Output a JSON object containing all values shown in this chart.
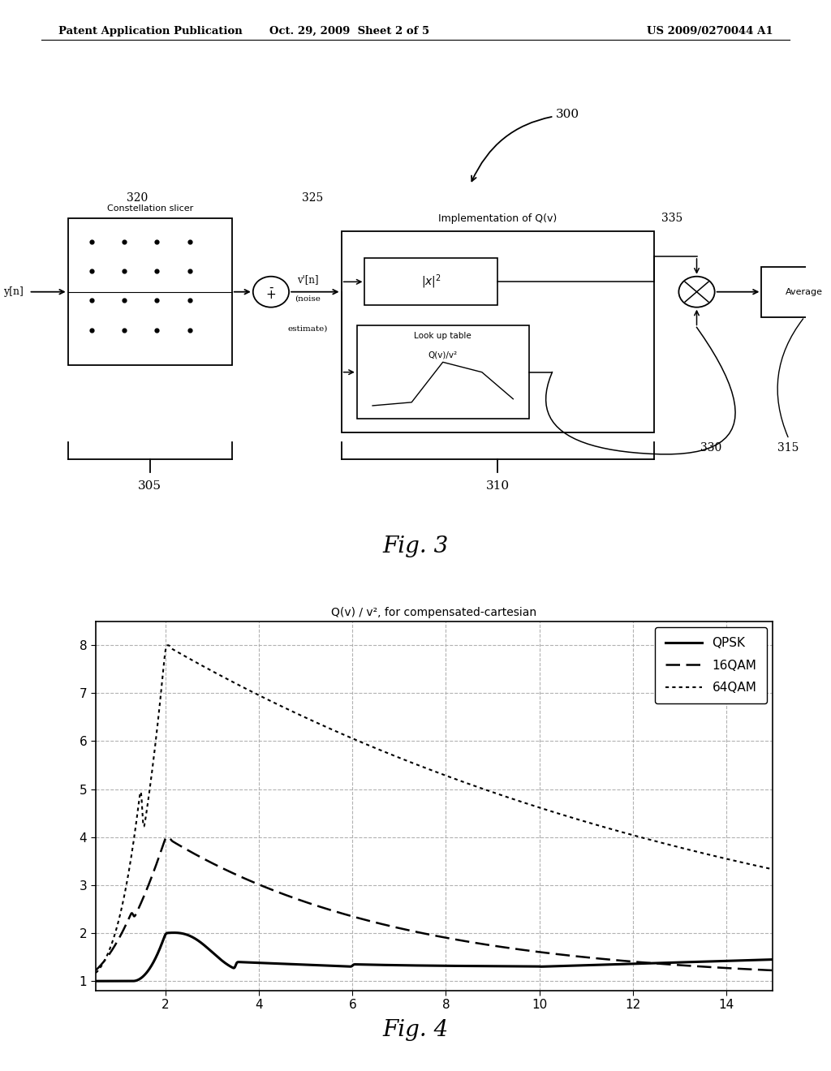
{
  "header_left": "Patent Application Publication",
  "header_center": "Oct. 29, 2009  Sheet 2 of 5",
  "header_right": "US 2009/0270044 A1",
  "fig3_label": "Fig. 3",
  "fig4_label": "Fig. 4",
  "fig4_title": "Q(v) / v², for compensated-cartesian",
  "fig4_xlim": [
    0.5,
    15
  ],
  "fig4_ylim": [
    0.8,
    8.5
  ],
  "fig4_xticks": [
    2,
    4,
    6,
    8,
    10,
    12,
    14
  ],
  "fig4_yticks": [
    1,
    2,
    3,
    4,
    5,
    6,
    7,
    8
  ],
  "legend_labels": [
    "QPSK",
    "16QAM",
    "64QAM"
  ],
  "bg_color": "#ffffff",
  "line_color": "#000000"
}
